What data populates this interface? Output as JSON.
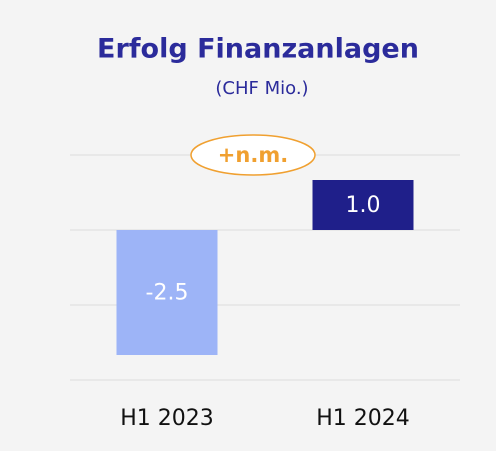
{
  "chart_data": {
    "type": "bar",
    "title": "Erfolg Finanzanlagen",
    "subtitle": "(CHF Mio.)",
    "categories": [
      "H1 2023",
      "H1 2024"
    ],
    "values": [
      -2.5,
      1.0
    ],
    "value_labels": [
      "-2.5",
      "1.0"
    ],
    "colors": [
      "#9db4f7",
      "#1f1f8a"
    ],
    "ylim": [
      -3,
      1.5
    ],
    "annotation": "+n.m."
  }
}
